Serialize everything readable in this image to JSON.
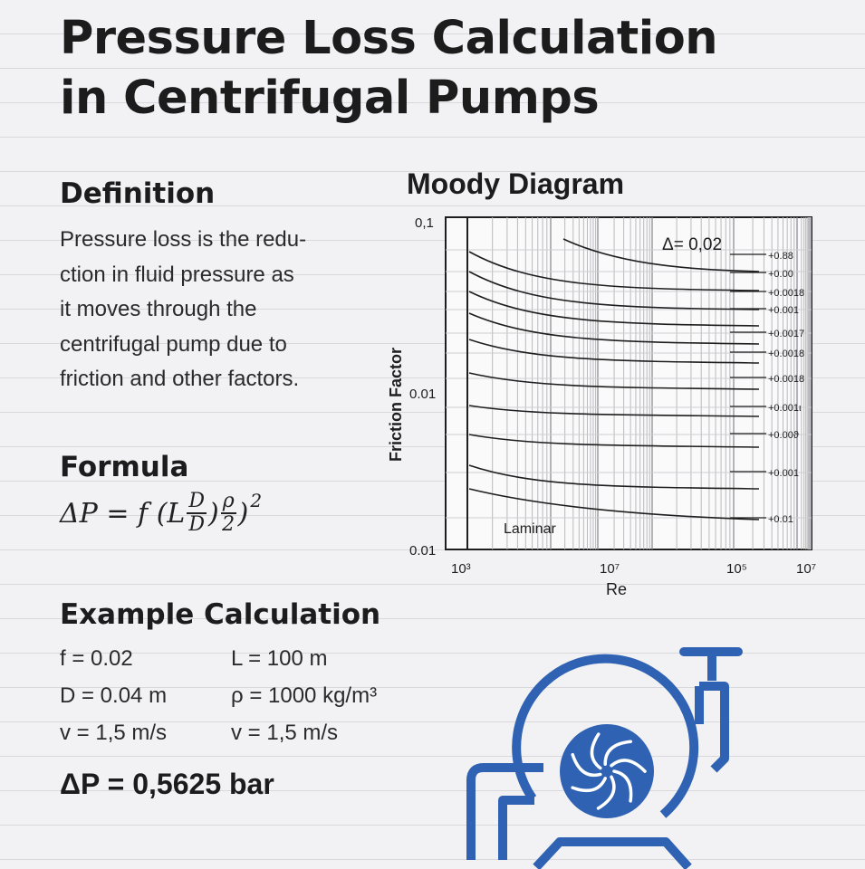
{
  "title": {
    "line1": "Pressure Loss Calculation",
    "line2": "in Centrifugal Pumps"
  },
  "definition": {
    "heading": "Definition",
    "lines": [
      "Pressure loss is the redu-",
      "ction in fluid pressure as",
      "it moves through the",
      "centrifugal pump due to",
      "friction and other factors."
    ]
  },
  "formula": {
    "heading": "Formula",
    "lhs": "ΔP = f (L",
    "frac_num": "D",
    "frac_den": "D",
    "mid": ")",
    "rho_num": "ρ",
    "rho_den": "2",
    "close": ")",
    "exp": "2"
  },
  "example": {
    "heading": "Example Calculation",
    "rows": [
      {
        "left": "f = 0.02",
        "right": "L = 100 m"
      },
      {
        "left": "D = 0.04 m",
        "right": "ρ = 1000 kg/m³"
      },
      {
        "left": "v = 1,5 m/s",
        "right": "v = 1,5 m/s"
      }
    ],
    "result": "ΔP = 0,5625 bar"
  },
  "colors": {
    "accent": "#2f62b3",
    "text": "#1e1e1e",
    "grid": "#b9b9bd"
  },
  "icons": [
    "centrifugal-pump-icon",
    "impeller-icon",
    "valve-handle-icon"
  ],
  "chart_data": {
    "type": "line",
    "title": "Moody Diagram",
    "xlabel": "Re",
    "ylabel": "Friction Factor",
    "x_ticks": [
      "10³",
      "10⁷",
      "10⁵",
      "10⁷"
    ],
    "y_ticks": [
      "0,1",
      "0.01",
      "0.01"
    ],
    "annotation_top": "Δ= 0,02",
    "annotation_laminar": "Laminar",
    "grid": true,
    "series": [
      {
        "name": "+0.88"
      },
      {
        "name": "+0.00"
      },
      {
        "name": "+0.0018"
      },
      {
        "name": "+0.001"
      },
      {
        "name": "+0.0017"
      },
      {
        "name": "+0.0018"
      },
      {
        "name": "+0.0018"
      },
      {
        "name": "+0.001ι"
      },
      {
        "name": "+0.00ϑ"
      },
      {
        "name": "+0.001"
      },
      {
        "name": "+0.01"
      }
    ]
  }
}
